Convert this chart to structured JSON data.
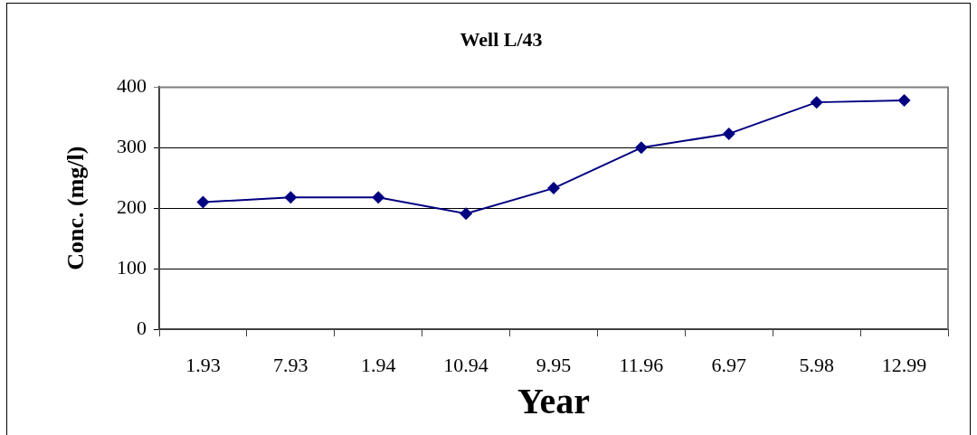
{
  "chart_data": {
    "type": "line",
    "title": "Well L/43",
    "xlabel": "Year",
    "ylabel": "Conc. (mg/l)",
    "categories": [
      "1.93",
      "7.93",
      "1.94",
      "10.94",
      "9.95",
      "11.96",
      "6.97",
      "5.98",
      "12.99"
    ],
    "series": [
      {
        "color": "#000080",
        "values": [
          210,
          218,
          218,
          191,
          233,
          300,
          323,
          375,
          378
        ]
      }
    ],
    "ylim": [
      0,
      400
    ],
    "yticks": [
      0,
      100,
      200,
      300,
      400
    ],
    "grid": "y",
    "marker": "diamond",
    "line_style": "solid"
  }
}
